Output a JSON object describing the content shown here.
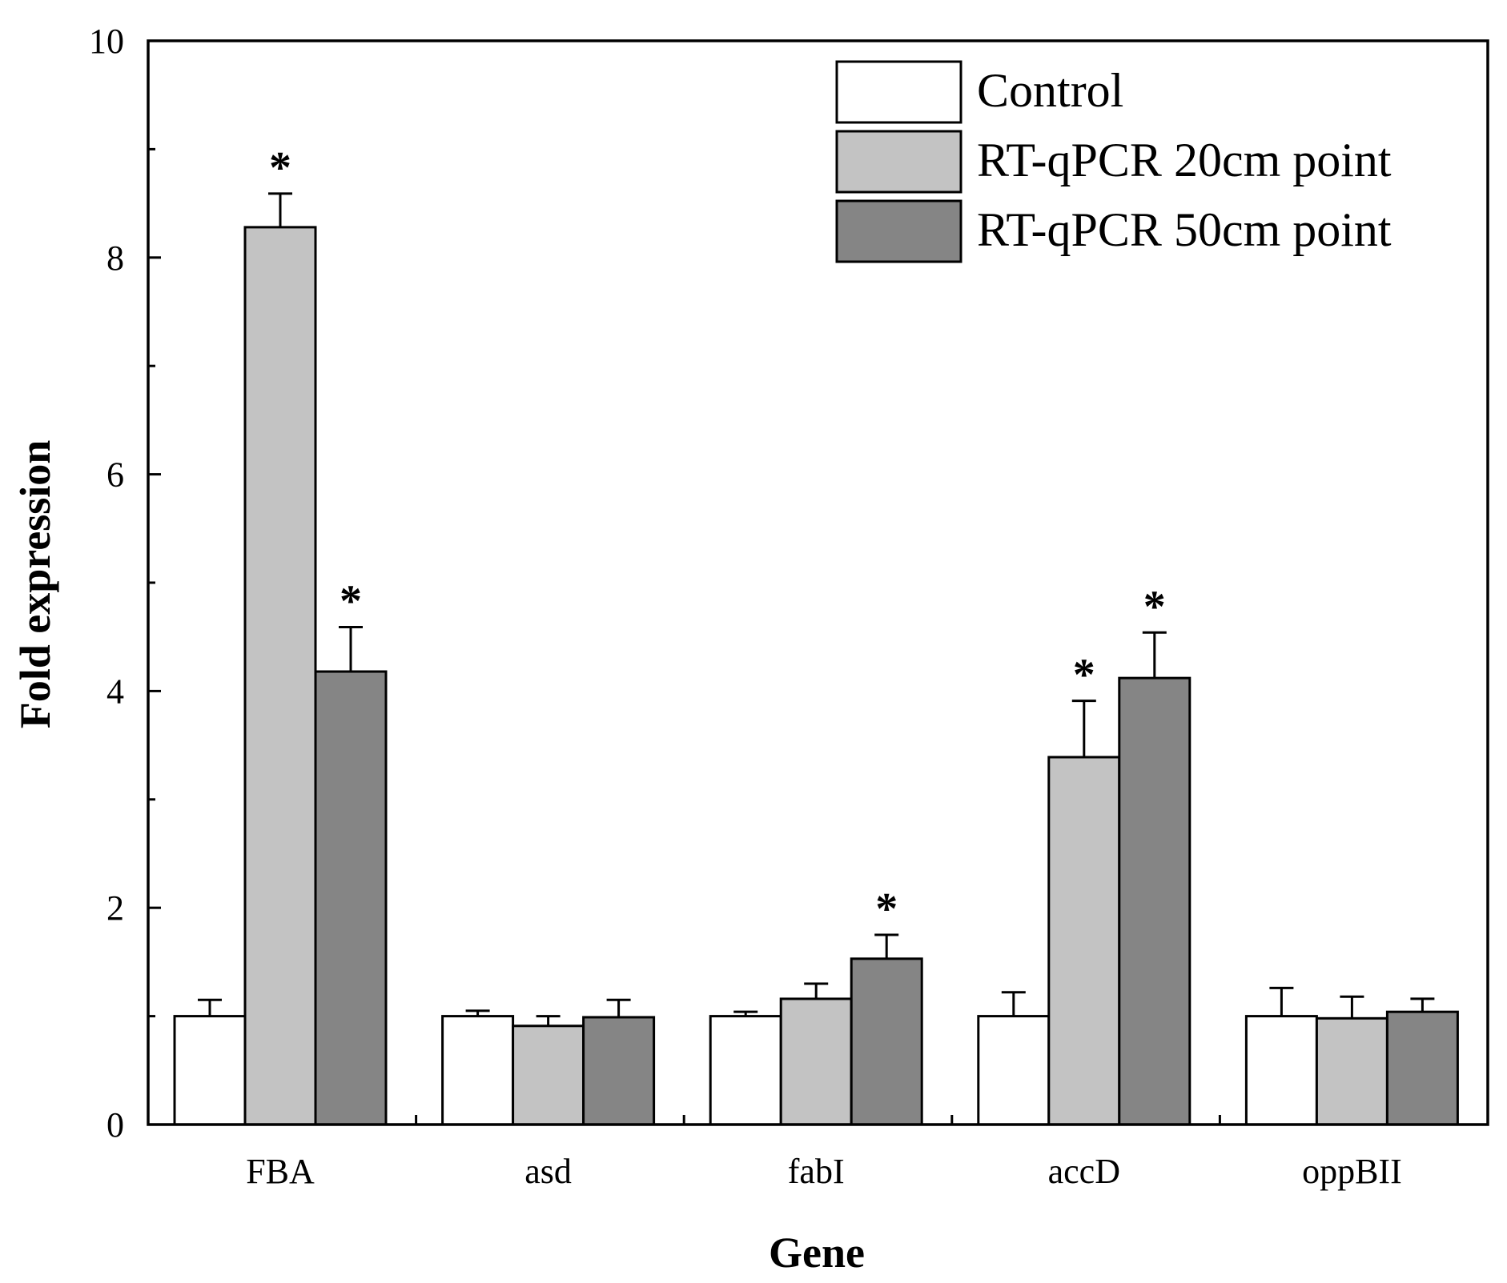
{
  "chart_data": {
    "type": "bar",
    "title": "",
    "xlabel": "Gene",
    "ylabel": "Fold expression",
    "ylim": [
      0,
      10
    ],
    "yticks": [
      0,
      2,
      4,
      6,
      8,
      10
    ],
    "categories": [
      "FBA",
      "asd",
      "fabI",
      "accD",
      "oppBII"
    ],
    "series": [
      {
        "name": "Control",
        "color": "#ffffff",
        "values": [
          1.0,
          1.0,
          1.0,
          1.0,
          1.0
        ],
        "errors": [
          0.15,
          0.05,
          0.04,
          0.22,
          0.26
        ],
        "significant": [
          false,
          false,
          false,
          false,
          false
        ]
      },
      {
        "name": "RT-qPCR 20cm point",
        "color": "#c3c3c3",
        "values": [
          8.28,
          0.91,
          1.16,
          3.39,
          0.98
        ],
        "errors": [
          0.31,
          0.09,
          0.14,
          0.52,
          0.2
        ],
        "significant": [
          true,
          false,
          false,
          true,
          false
        ]
      },
      {
        "name": "RT-qPCR 50cm point",
        "color": "#858585",
        "values": [
          4.18,
          0.99,
          1.53,
          4.12,
          1.04
        ],
        "errors": [
          0.41,
          0.16,
          0.22,
          0.42,
          0.12
        ],
        "significant": [
          true,
          false,
          true,
          true,
          false
        ]
      }
    ],
    "significance_marker": "*",
    "legend_position": "top-right"
  }
}
